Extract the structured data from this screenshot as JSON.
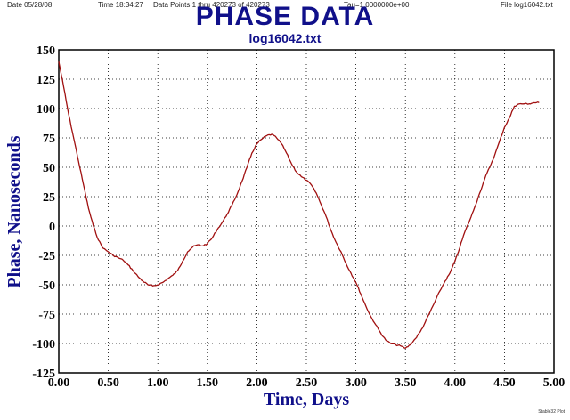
{
  "header": {
    "date": "Date  05/28/08",
    "time": "Time  18:34:27",
    "points": "Data Points 1 thru 420273 of 420273",
    "tau": "Tau=1.0000000e+00",
    "file": "File  log16042.txt"
  },
  "corner_text": "Stable32 Plot",
  "chart_data": {
    "type": "line",
    "title": "PHASE DATA",
    "subtitle": "log16042.txt",
    "xlabel": "Time, Days",
    "ylabel": "Phase, Nanoseconds",
    "xlim": [
      0,
      5
    ],
    "ylim": [
      -125,
      150
    ],
    "xticks": [
      "0.00",
      "0.50",
      "1.00",
      "1.50",
      "2.00",
      "2.50",
      "3.00",
      "3.50",
      "4.00",
      "4.50",
      "5.00"
    ],
    "yticks": [
      "150",
      "125",
      "100",
      "75",
      "50",
      "25",
      "0",
      "-25",
      "-50",
      "-75",
      "-100",
      "-125"
    ],
    "grid": true,
    "line_color": "#a01010",
    "series": [
      {
        "x": [
          0.0,
          0.05,
          0.1,
          0.15,
          0.2,
          0.25,
          0.3,
          0.35,
          0.4,
          0.45,
          0.5,
          0.55,
          0.6,
          0.65,
          0.7,
          0.75,
          0.8,
          0.85,
          0.9,
          0.95,
          1.0,
          1.05,
          1.1,
          1.15,
          1.2,
          1.25,
          1.3,
          1.35,
          1.4,
          1.45,
          1.5,
          1.55,
          1.6,
          1.65,
          1.7,
          1.75,
          1.8,
          1.85,
          1.9,
          1.95,
          2.0,
          2.05,
          2.1,
          2.15,
          2.2,
          2.25,
          2.3,
          2.35,
          2.4,
          2.45,
          2.5,
          2.55,
          2.6,
          2.65,
          2.7,
          2.75,
          2.8,
          2.85,
          2.9,
          2.95,
          3.0,
          3.05,
          3.1,
          3.15,
          3.2,
          3.25,
          3.3,
          3.35,
          3.4,
          3.45,
          3.5,
          3.55,
          3.6,
          3.65,
          3.7,
          3.75,
          3.8,
          3.85,
          3.9,
          3.95,
          4.0,
          4.05,
          4.1,
          4.15,
          4.2,
          4.25,
          4.3,
          4.35,
          4.4,
          4.45,
          4.5,
          4.55,
          4.6,
          4.65,
          4.7,
          4.75,
          4.8,
          4.85
        ],
        "y": [
          140,
          118,
          95,
          75,
          55,
          35,
          15,
          0,
          -12,
          -19,
          -22,
          -25,
          -27,
          -29,
          -33,
          -38,
          -43,
          -47,
          -50,
          -51,
          -50,
          -48,
          -45,
          -42,
          -38,
          -30,
          -22,
          -18,
          -16,
          -17,
          -15,
          -10,
          -3,
          3,
          10,
          18,
          27,
          38,
          50,
          62,
          70,
          74,
          77,
          78,
          75,
          70,
          62,
          53,
          46,
          42,
          39,
          35,
          28,
          18,
          8,
          -4,
          -14,
          -22,
          -32,
          -40,
          -48,
          -58,
          -68,
          -77,
          -84,
          -91,
          -97,
          -100,
          -101,
          -102,
          -104,
          -101,
          -96,
          -90,
          -82,
          -73,
          -64,
          -55,
          -47,
          -40,
          -30,
          -18,
          -5,
          5,
          16,
          28,
          40,
          50,
          60,
          72,
          84,
          92,
          102,
          104,
          104,
          104,
          105,
          105
        ]
      }
    ]
  }
}
